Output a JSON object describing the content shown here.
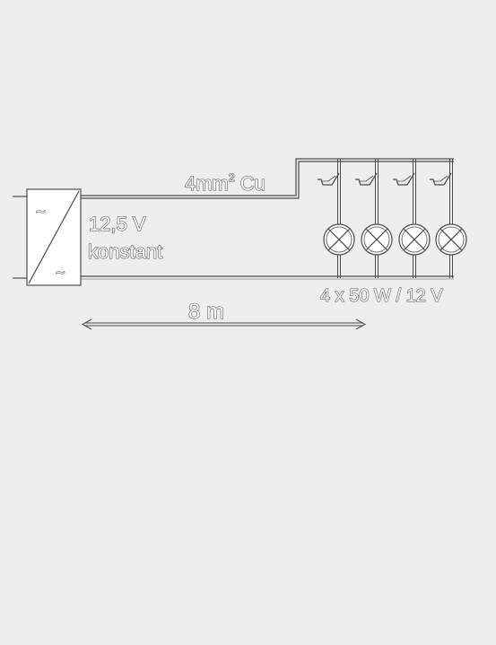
{
  "cable_label": "4mm",
  "cable_label_sup": "2",
  "cable_label_suffix": " Cu",
  "voltage_label": "12,5 V",
  "voltage_note": "konstant",
  "lamp_rating": "4 x 50 W / 12 V",
  "distance_label": "8 m",
  "transformer_in_symbol": "~",
  "transformer_out_symbol": "~",
  "colors": {
    "line": "#4a4a4a",
    "fill": "#ffffff",
    "background": "#eeeeee"
  },
  "icons": [
    "transformer-icon",
    "lamp-icon",
    "switch-icon",
    "dimension-arrow-icon"
  ]
}
